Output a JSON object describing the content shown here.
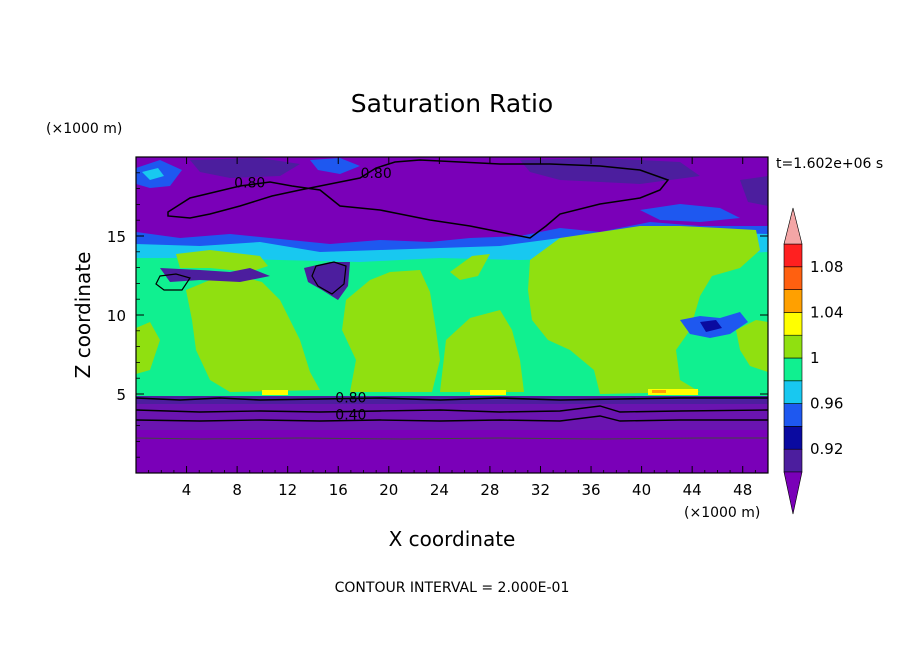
{
  "chart_data": {
    "type": "heatmap",
    "title": "Saturation Ratio",
    "xlabel": "X coordinate",
    "ylabel": "Z coordinate",
    "x_unit": "(×1000 m)",
    "y_unit": "(×1000 m)",
    "time_label": "t=1.602e+06 s",
    "footer": "CONTOUR INTERVAL = 2.000E-01",
    "xlim": [
      0,
      50
    ],
    "ylim": [
      0,
      20
    ],
    "x_ticks": [
      4,
      8,
      12,
      16,
      20,
      24,
      28,
      32,
      36,
      40,
      44,
      48
    ],
    "y_ticks": [
      5,
      10,
      15
    ],
    "colorbar": {
      "levels": [
        0.9,
        0.92,
        0.94,
        0.96,
        0.98,
        1.0,
        1.02,
        1.04,
        1.06,
        1.08,
        1.1
      ],
      "labels": [
        "0.92",
        "0.96",
        "1",
        "1.04",
        "1.08"
      ],
      "label_values": [
        0.92,
        0.96,
        1.0,
        1.04,
        1.08
      ],
      "colors": [
        "#4c1e9e",
        "#0a0aa0",
        "#1e58f0",
        "#18c8f0",
        "#10f090",
        "#90e010",
        "#ffff00",
        "#ffa000",
        "#ff6010",
        "#ff2020"
      ],
      "under_color": "#7a00b8",
      "over_color": "#f4a6a6"
    },
    "contour_labels": [
      {
        "text": "0.80",
        "x": 9.0,
        "z": 18.2
      },
      {
        "text": "0.80",
        "x": 19.0,
        "z": 18.8
      },
      {
        "text": "0.80",
        "x": 17.0,
        "z": 4.6
      },
      {
        "text": "0.40",
        "x": 17.0,
        "z": 3.5
      }
    ],
    "regions": [
      {
        "name": "lower-dry-layer",
        "x": [
          0,
          50
        ],
        "z": [
          0,
          4.8
        ],
        "range": "< 0.90"
      },
      {
        "name": "upper-dry-layer",
        "x": [
          0,
          50
        ],
        "z": [
          15.5,
          20
        ],
        "range": "< 0.90"
      },
      {
        "name": "cloud-layer",
        "x": [
          0,
          50
        ],
        "z": [
          4.8,
          15.5
        ],
        "range": "0.98 - 1.02"
      }
    ]
  }
}
